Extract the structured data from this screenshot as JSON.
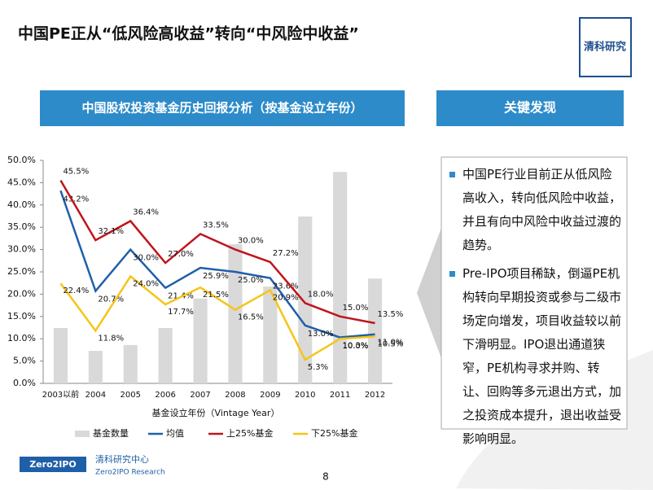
{
  "title": "中国PE正从“低风险高收益”转向“中风险中收益”",
  "logo": "清科研究",
  "chart_header": "中国股权投资基金历史回报分析（按基金设立年份）",
  "findings": {
    "header": "关键发现",
    "bullets": [
      "中国PE行业目前正从低风险高收入，转向低风险中收益，并且有向中风险中收益过渡的趋势。",
      "Pre-IPO项目稀缺，倒逼PE机构转向早期投资或参与二级市场定向增发，项目收益较以前下滑明显。IPO退出通道狭窄，PE机构寻求并购、转让、回购等多元退出方式，加之投资成本提升，退出收益受影响明显。"
    ]
  },
  "footer": {
    "badge": "Zero2IPO",
    "org": "清科研究中心",
    "org_en": "Zero2IPO Research",
    "page": "8"
  },
  "chart_data": {
    "type": "combo",
    "x_label": "基金设立年份（Vintage Year）",
    "categories": [
      "2003以前",
      "2004",
      "2005",
      "2006",
      "2007",
      "2008",
      "2009",
      "2010",
      "2011",
      "2012"
    ],
    "ylim": [
      0,
      50
    ],
    "yticks": [
      {
        "value": 0,
        "label": "0.0%"
      },
      {
        "value": 5,
        "label": "5.0%"
      },
      {
        "value": 10,
        "label": "10.0%"
      },
      {
        "value": 15,
        "label": "15.0%"
      },
      {
        "value": 20,
        "label": "20.0%"
      },
      {
        "value": 25,
        "label": "25.0%"
      },
      {
        "value": 30,
        "label": "30.0%"
      },
      {
        "value": 35,
        "label": "35.0%"
      },
      {
        "value": 40,
        "label": "40.0%"
      },
      {
        "value": 45,
        "label": "45.0%"
      },
      {
        "value": 50,
        "label": "50.0%"
      }
    ],
    "series": [
      {
        "name": "基金数量",
        "type": "bar",
        "color": "#d9d9d9",
        "values": [
          12.4,
          7.3,
          8.6,
          12.4,
          19,
          31.2,
          21.7,
          37.4,
          47.4,
          23.5
        ]
      },
      {
        "name": "均值",
        "type": "line",
        "color": "#1f5fa8",
        "values": [
          43.2,
          20.7,
          30.0,
          21.4,
          25.9,
          25.0,
          23.6,
          13.0,
          10.3,
          11.0
        ],
        "value_labels": [
          "43.2%",
          "20.7%",
          "30.0%",
          "21.4%",
          "25.9%",
          "25.0%",
          "23.6%",
          "13.0%",
          "10.3%",
          "11.0%"
        ]
      },
      {
        "name": "上25%基金",
        "type": "line",
        "color": "#c0141c",
        "values": [
          45.5,
          32.1,
          36.4,
          27.0,
          33.5,
          30.0,
          27.2,
          18.0,
          15.0,
          13.5
        ],
        "value_labels": [
          "45.5%",
          "32.1%",
          "36.4%",
          "27.0%",
          "33.5%",
          "30.0%",
          "27.2%",
          "18.0%",
          "15.0%",
          "13.5%"
        ]
      },
      {
        "name": "下25%基金",
        "type": "line",
        "color": "#f5c518",
        "values": [
          22.4,
          11.8,
          24.0,
          17.7,
          21.5,
          16.5,
          20.9,
          5.3,
          10.0,
          10.5
        ],
        "value_labels": [
          "22.4%",
          "11.8%",
          "24.0%",
          "17.7%",
          "21.5%",
          "16.5%",
          "20.9%",
          "5.3%",
          "10.0%",
          "10.5%"
        ]
      }
    ]
  }
}
